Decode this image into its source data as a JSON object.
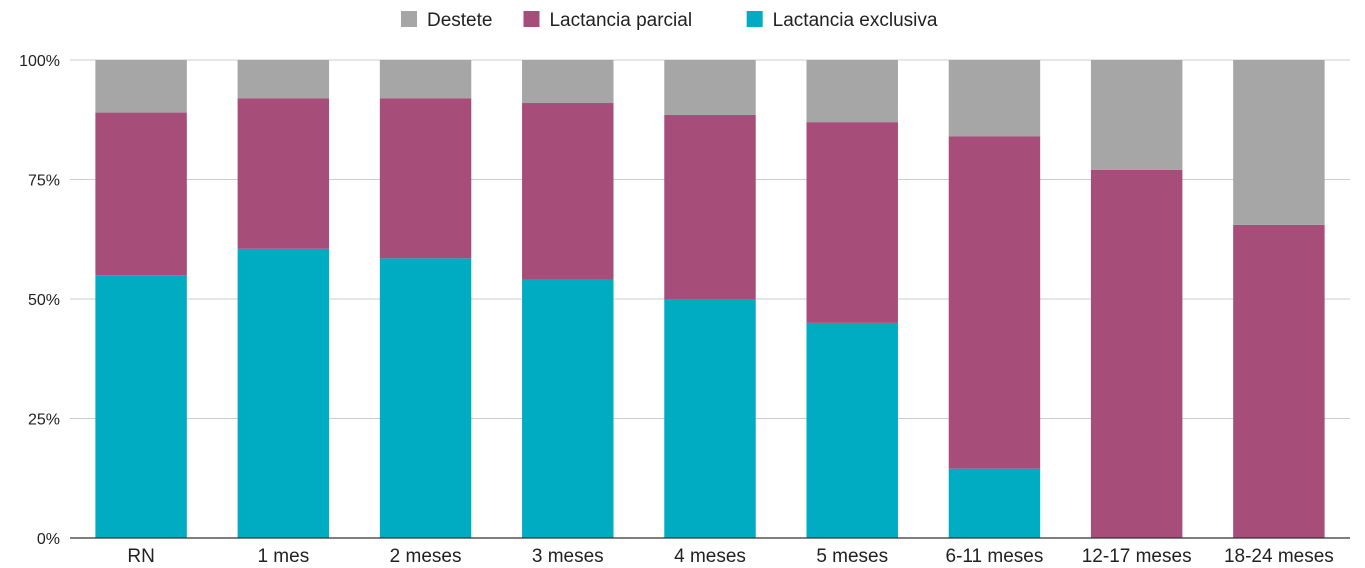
{
  "chart_data": {
    "type": "bar",
    "stacked": true,
    "percent": true,
    "categories": [
      "RN",
      "1 mes",
      "2 meses",
      "3 meses",
      "4 meses",
      "5 meses",
      "6-11 meses",
      "12-17 meses",
      "18-24 meses"
    ],
    "series": [
      {
        "name": "Lactancia exclusiva",
        "color": "#00acc1",
        "values": [
          55,
          60.5,
          58.5,
          54,
          50,
          45,
          14.5,
          0,
          0
        ]
      },
      {
        "name": "Lactancia parcial",
        "color": "#a64d79",
        "values": [
          34,
          31.5,
          33.5,
          37,
          38.5,
          42,
          69.5,
          77,
          65.5
        ]
      },
      {
        "name": "Destete",
        "color": "#a6a6a6",
        "values": [
          11,
          8,
          8,
          9,
          11.5,
          13,
          16,
          23,
          34.5
        ]
      }
    ],
    "legend_order": [
      "Destete",
      "Lactancia parcial",
      "Lactancia exclusiva"
    ],
    "ylim": [
      0,
      100
    ],
    "yticks": [
      "0%",
      "25%",
      "50%",
      "75%",
      "100%"
    ],
    "title": "",
    "xlabel": "",
    "ylabel": "",
    "legend_position": "top",
    "grid": true
  }
}
